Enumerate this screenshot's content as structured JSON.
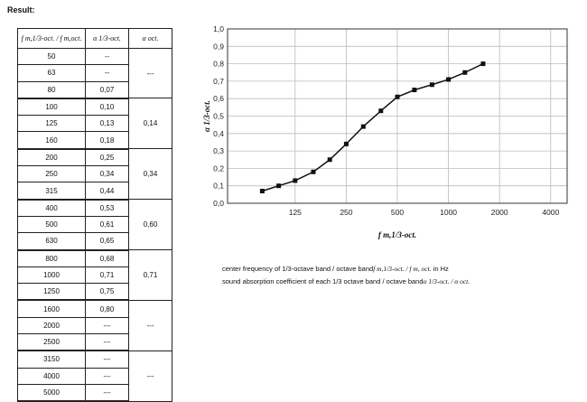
{
  "result_label": "Result:",
  "table": {
    "headers": [
      "f m,1/3-oct. / f m,oct.",
      "α 1/3-oct.",
      "α oct."
    ],
    "rows": [
      {
        "f": "50",
        "a13": "--",
        "aoct": "---",
        "span": 3
      },
      {
        "f": "63",
        "a13": "--"
      },
      {
        "f": "80",
        "a13": "0,07"
      },
      {
        "f": "100",
        "a13": "0,10",
        "aoct": "0,14",
        "span": 3
      },
      {
        "f": "125",
        "a13": "0,13"
      },
      {
        "f": "160",
        "a13": "0,18"
      },
      {
        "f": "200",
        "a13": "0,25",
        "aoct": "0,34",
        "span": 3
      },
      {
        "f": "250",
        "a13": "0,34"
      },
      {
        "f": "315",
        "a13": "0,44"
      },
      {
        "f": "400",
        "a13": "0,53",
        "aoct": "0,60",
        "span": 3
      },
      {
        "f": "500",
        "a13": "0,61"
      },
      {
        "f": "630",
        "a13": "0,65"
      },
      {
        "f": "800",
        "a13": "0,68",
        "aoct": "0,71",
        "span": 3
      },
      {
        "f": "1000",
        "a13": "0,71"
      },
      {
        "f": "1250",
        "a13": "0,75"
      },
      {
        "f": "1600",
        "a13": "0,80",
        "aoct": "---",
        "span": 3
      },
      {
        "f": "2000",
        "a13": "---"
      },
      {
        "f": "2500",
        "a13": "---"
      },
      {
        "f": "3150",
        "a13": "---",
        "aoct": "---",
        "span": 3
      },
      {
        "f": "4000",
        "a13": "---"
      },
      {
        "f": "5000",
        "a13": "---"
      }
    ]
  },
  "chart_data": {
    "type": "line",
    "xscale": "log",
    "xlim": [
      50,
      5000
    ],
    "ylim": [
      0,
      1
    ],
    "xticks": [
      125,
      250,
      500,
      1000,
      2000,
      4000
    ],
    "xtick_labels": [
      "125",
      "250",
      "500",
      "1000",
      "2000",
      "4000"
    ],
    "yticks": [
      0,
      0.1,
      0.2,
      0.3,
      0.4,
      0.5,
      0.6,
      0.7,
      0.8,
      0.9,
      1.0
    ],
    "ytick_labels": [
      "0,0",
      "0,1",
      "0,2",
      "0,3",
      "0,4",
      "0,5",
      "0,6",
      "0,7",
      "0,8",
      "0,9",
      "1,0"
    ],
    "xlabel": "f m,1/3-oct.",
    "ylabel": "α 1/3-oct.",
    "grid": true,
    "color": "#111111",
    "series": [
      {
        "x": [
          80,
          100,
          125,
          160,
          200,
          250,
          315,
          400,
          500,
          630,
          800,
          1000,
          1250,
          1600
        ],
        "y": [
          0.07,
          0.1,
          0.13,
          0.18,
          0.25,
          0.34,
          0.44,
          0.53,
          0.61,
          0.65,
          0.68,
          0.71,
          0.75,
          0.8
        ]
      }
    ]
  },
  "legend": {
    "line1_text": "center frequency of 1/3-octave band / octave band",
    "line1_symbols": "f m,1/3-oct. / f m, oct.",
    "line1_unit": "in Hz",
    "line2_text": "sound absorption coefficient of each 1/3 octave band / octave band",
    "line2_symbols": "α 1/3-oct. / α oct."
  }
}
